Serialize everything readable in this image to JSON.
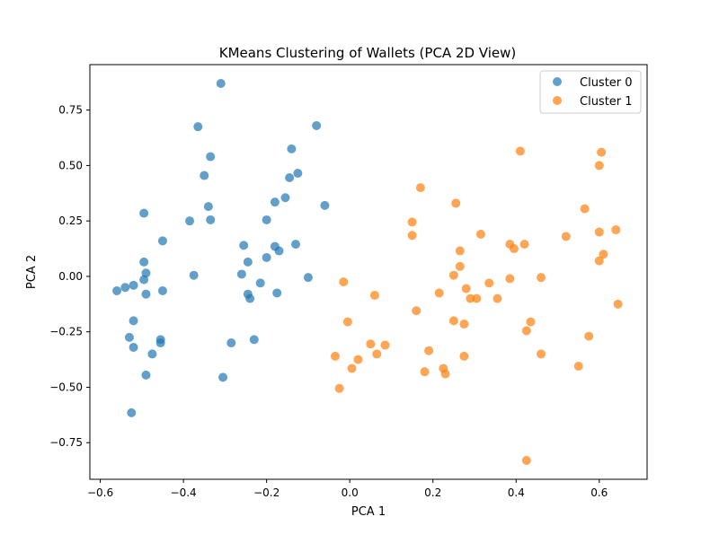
{
  "chart_data": {
    "type": "scatter",
    "title": "KMeans Clustering of Wallets (PCA 2D View)",
    "xlabel": "PCA 1",
    "ylabel": "PCA 2",
    "xlim": [
      -0.625,
      0.715
    ],
    "ylim": [
      -0.915,
      0.955
    ],
    "xticks": [
      -0.6,
      -0.4,
      -0.2,
      0.0,
      0.2,
      0.4,
      0.6
    ],
    "xtick_labels": [
      "−0.6",
      "−0.4",
      "−0.2",
      "0.0",
      "0.2",
      "0.4",
      "0.6"
    ],
    "yticks": [
      -0.75,
      -0.5,
      -0.25,
      0.0,
      0.25,
      0.5,
      0.75
    ],
    "ytick_labels": [
      "−0.75",
      "−0.50",
      "−0.25",
      "0.00",
      "0.25",
      "0.50",
      "0.75"
    ],
    "grid": false,
    "legend_position": "upper right",
    "series": [
      {
        "name": "Cluster 0",
        "color": "#1f77b4",
        "x": [
          -0.31,
          -0.365,
          -0.08,
          -0.335,
          -0.14,
          -0.125,
          -0.35,
          -0.145,
          -0.34,
          -0.155,
          -0.18,
          -0.06,
          -0.335,
          -0.495,
          -0.385,
          -0.2,
          -0.45,
          -0.255,
          -0.13,
          -0.18,
          -0.17,
          -0.495,
          -0.2,
          -0.245,
          -0.49,
          -0.375,
          -0.26,
          -0.1,
          -0.215,
          -0.56,
          -0.54,
          -0.52,
          -0.495,
          -0.45,
          -0.49,
          -0.175,
          -0.245,
          -0.24,
          -0.52,
          -0.53,
          -0.455,
          -0.455,
          -0.52,
          -0.475,
          -0.285,
          -0.23,
          -0.49,
          -0.305,
          -0.525
        ],
        "y": [
          0.87,
          0.675,
          0.68,
          0.54,
          0.575,
          0.465,
          0.455,
          0.445,
          0.315,
          0.355,
          0.335,
          0.32,
          0.255,
          0.285,
          0.25,
          0.255,
          0.16,
          0.14,
          0.145,
          0.135,
          0.115,
          0.065,
          0.085,
          0.065,
          0.015,
          0.005,
          0.01,
          -0.005,
          -0.03,
          -0.065,
          -0.05,
          -0.04,
          -0.015,
          -0.065,
          -0.08,
          -0.075,
          -0.08,
          -0.1,
          -0.2,
          -0.275,
          -0.285,
          -0.3,
          -0.32,
          -0.35,
          -0.3,
          -0.285,
          -0.445,
          -0.455,
          -0.615
        ]
      },
      {
        "name": "Cluster 1",
        "color": "#ff7f0e",
        "x": [
          0.41,
          0.605,
          0.6,
          0.17,
          0.255,
          0.565,
          0.15,
          0.15,
          0.315,
          0.6,
          0.64,
          0.52,
          0.385,
          0.42,
          0.395,
          0.265,
          0.61,
          0.6,
          0.265,
          0.25,
          0.385,
          0.46,
          0.335,
          -0.015,
          0.29,
          0.06,
          0.215,
          0.28,
          0.305,
          0.355,
          0.645,
          0.16,
          0.25,
          0.275,
          0.435,
          0.425,
          0.575,
          -0.005,
          0.05,
          0.085,
          0.19,
          0.065,
          -0.035,
          0.275,
          0.02,
          0.46,
          0.005,
          0.225,
          0.18,
          0.23,
          0.55,
          -0.025,
          0.425
        ],
        "y": [
          0.565,
          0.56,
          0.5,
          0.4,
          0.33,
          0.305,
          0.245,
          0.185,
          0.19,
          0.2,
          0.21,
          0.18,
          0.145,
          0.145,
          0.125,
          0.115,
          0.1,
          0.07,
          0.045,
          0.005,
          -0.01,
          -0.005,
          -0.03,
          -0.025,
          -0.1,
          -0.085,
          -0.075,
          -0.055,
          -0.1,
          -0.1,
          -0.125,
          -0.155,
          -0.2,
          -0.215,
          -0.205,
          -0.245,
          -0.27,
          -0.205,
          -0.305,
          -0.31,
          -0.335,
          -0.35,
          -0.36,
          -0.36,
          -0.375,
          -0.35,
          -0.415,
          -0.415,
          -0.43,
          -0.44,
          -0.405,
          -0.505,
          -0.83
        ]
      }
    ]
  }
}
